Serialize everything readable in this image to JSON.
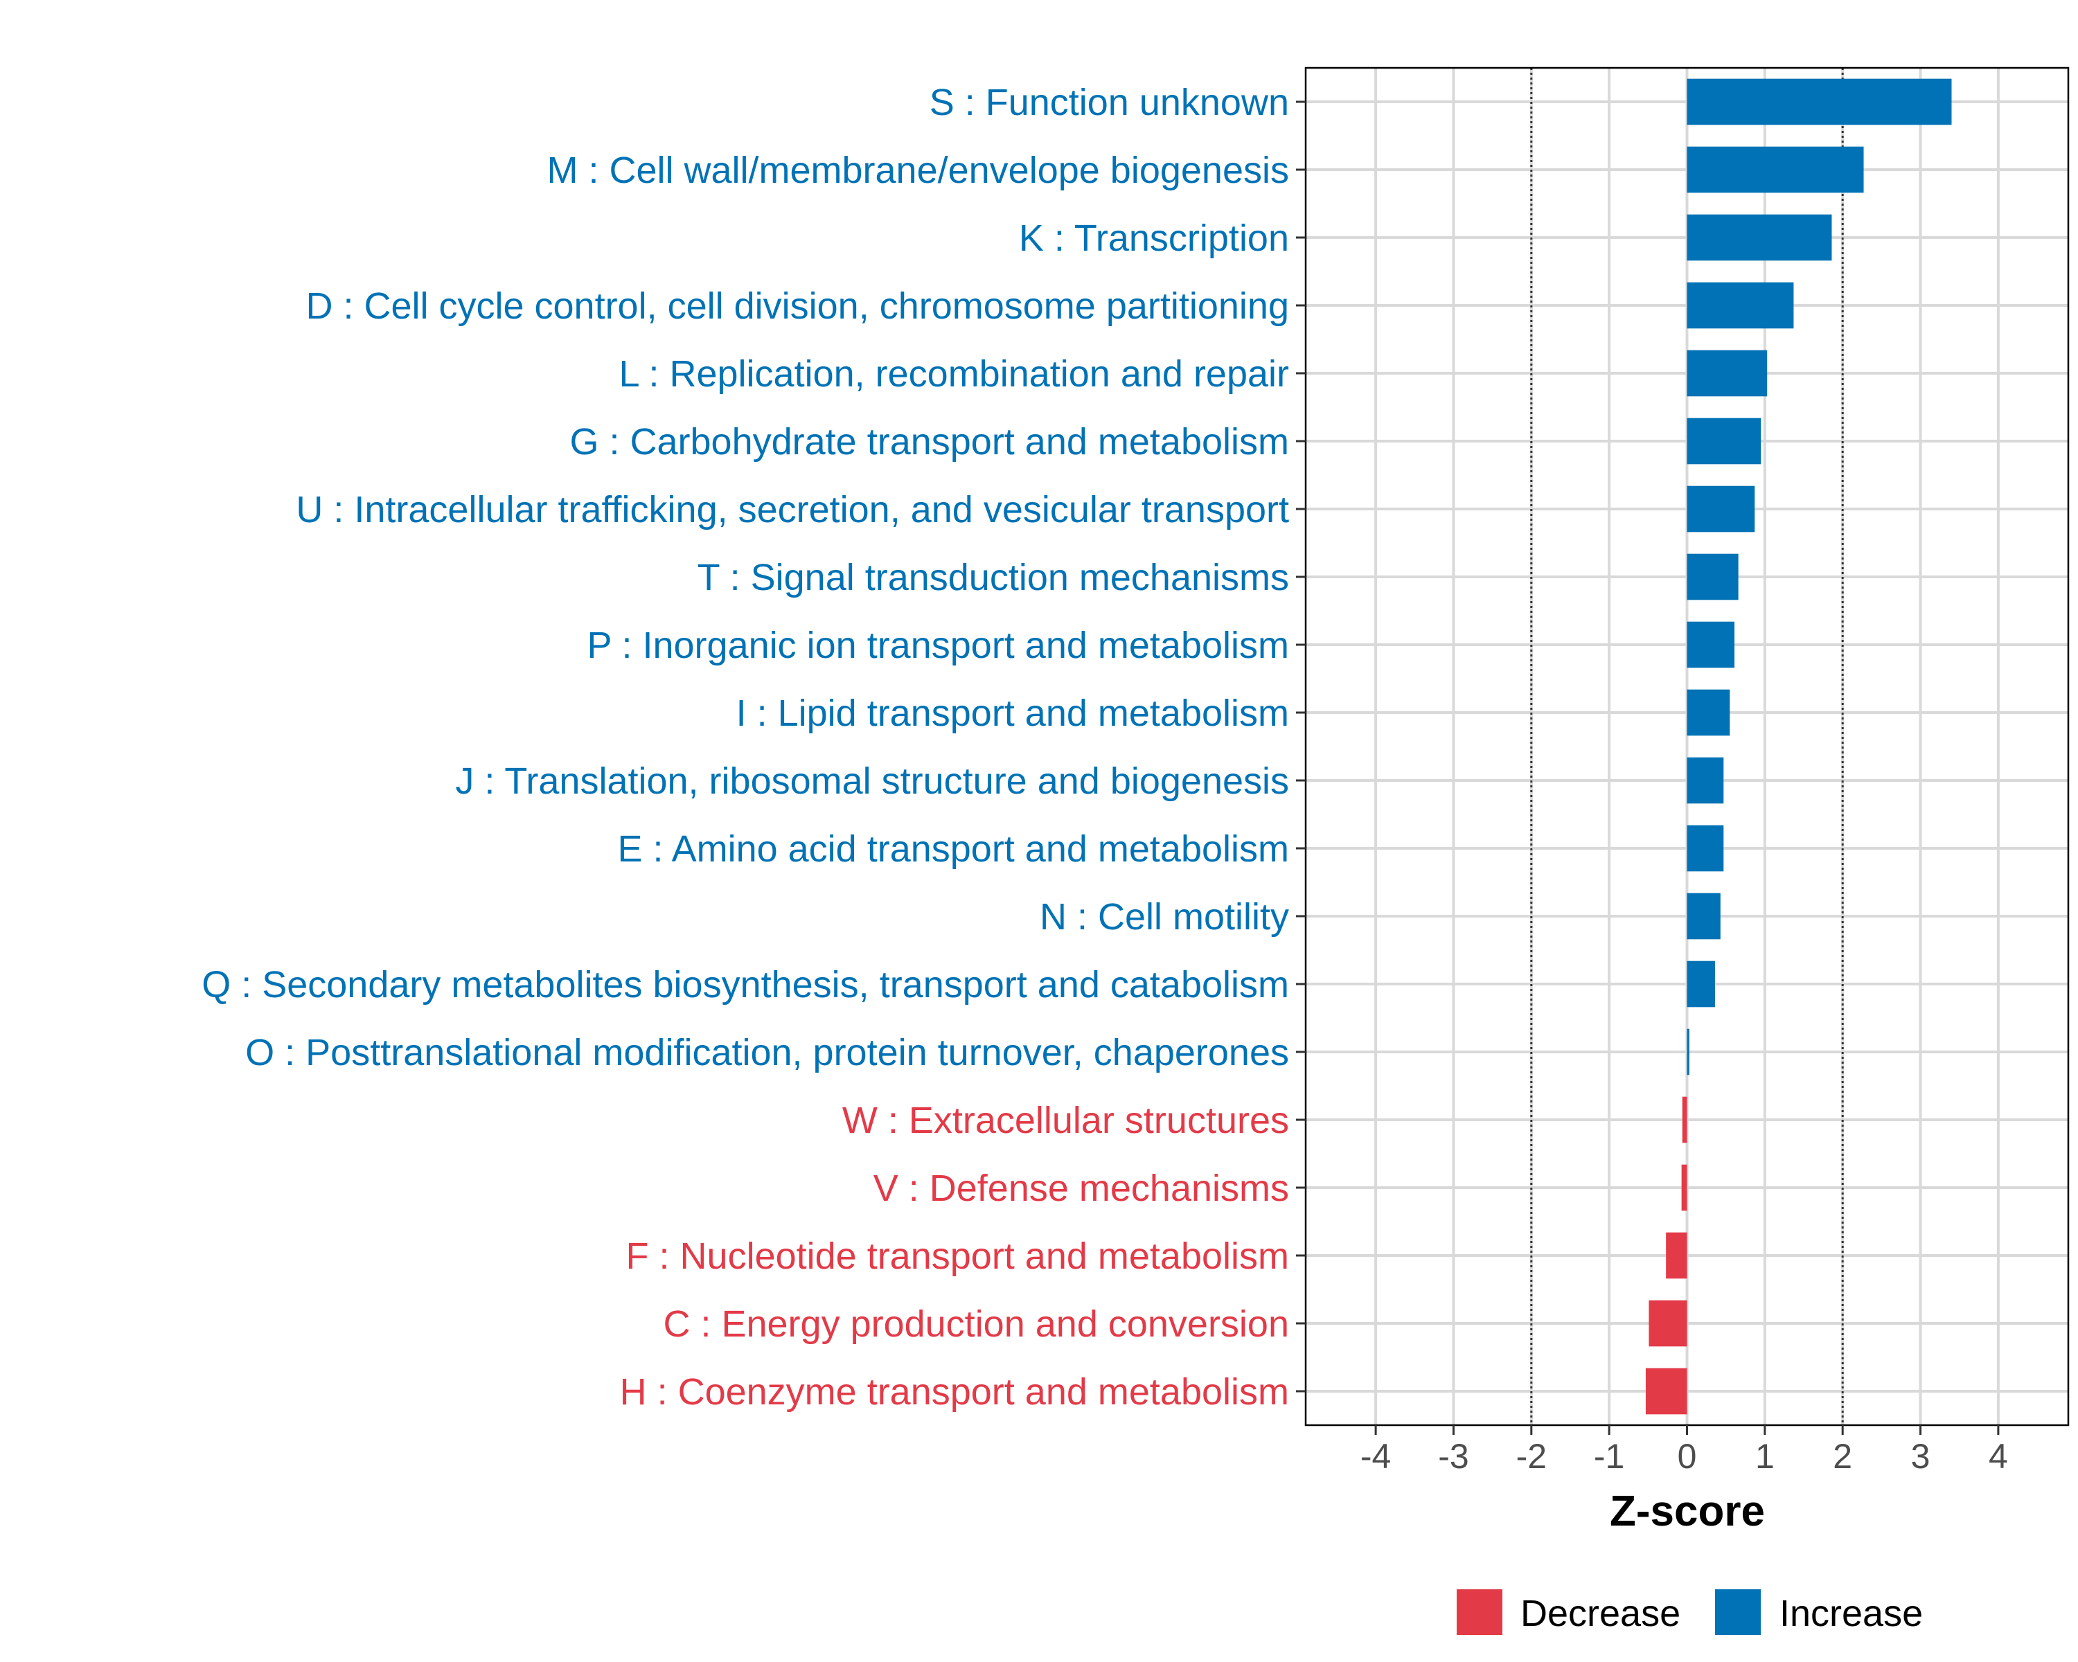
{
  "chart_data": {
    "type": "bar",
    "orientation": "horizontal",
    "title": "",
    "xlabel": "Z-score",
    "ylabel": "",
    "xlim": [
      -4.9,
      4.9
    ],
    "xticks": [
      -4,
      -3,
      -2,
      -1,
      0,
      1,
      2,
      3,
      4
    ],
    "xtick_labels": [
      "-4",
      "-3",
      "-2",
      "-1",
      "0",
      "1",
      "2",
      "3",
      "4"
    ],
    "reference_lines": [
      -2,
      2
    ],
    "grid": true,
    "colors": {
      "Increase": "#0072B5",
      "Decrease": "#E33A48"
    },
    "legend": {
      "position": "bottom",
      "entries": [
        {
          "label": "Decrease",
          "color": "#E33A48"
        },
        {
          "label": "Increase",
          "color": "#0072B5"
        }
      ]
    },
    "categories": [
      "S : Function unknown",
      "M : Cell wall/membrane/envelope biogenesis",
      "K : Transcription",
      "D : Cell cycle control, cell division, chromosome partitioning",
      "L : Replication, recombination and repair",
      "G : Carbohydrate transport and metabolism",
      "U : Intracellular trafficking, secretion, and vesicular transport",
      "T : Signal transduction mechanisms",
      "P : Inorganic ion transport and metabolism",
      "I : Lipid transport and metabolism",
      "J : Translation, ribosomal structure and biogenesis",
      "E : Amino acid transport and metabolism",
      "N : Cell motility",
      "Q : Secondary metabolites biosynthesis, transport and catabolism",
      "O : Posttranslational modification, protein turnover, chaperones",
      "W : Extracellular structures",
      "V : Defense mechanisms",
      "F : Nucleotide transport and metabolism",
      "C : Energy production and conversion",
      "H : Coenzyme transport and metabolism"
    ],
    "values": [
      3.4,
      2.27,
      1.86,
      1.37,
      1.03,
      0.95,
      0.87,
      0.66,
      0.61,
      0.55,
      0.47,
      0.47,
      0.43,
      0.36,
      0.03,
      -0.06,
      -0.07,
      -0.27,
      -0.49,
      -0.53
    ],
    "groups": [
      "Increase",
      "Increase",
      "Increase",
      "Increase",
      "Increase",
      "Increase",
      "Increase",
      "Increase",
      "Increase",
      "Increase",
      "Increase",
      "Increase",
      "Increase",
      "Increase",
      "Increase",
      "Decrease",
      "Decrease",
      "Decrease",
      "Decrease",
      "Decrease"
    ]
  }
}
